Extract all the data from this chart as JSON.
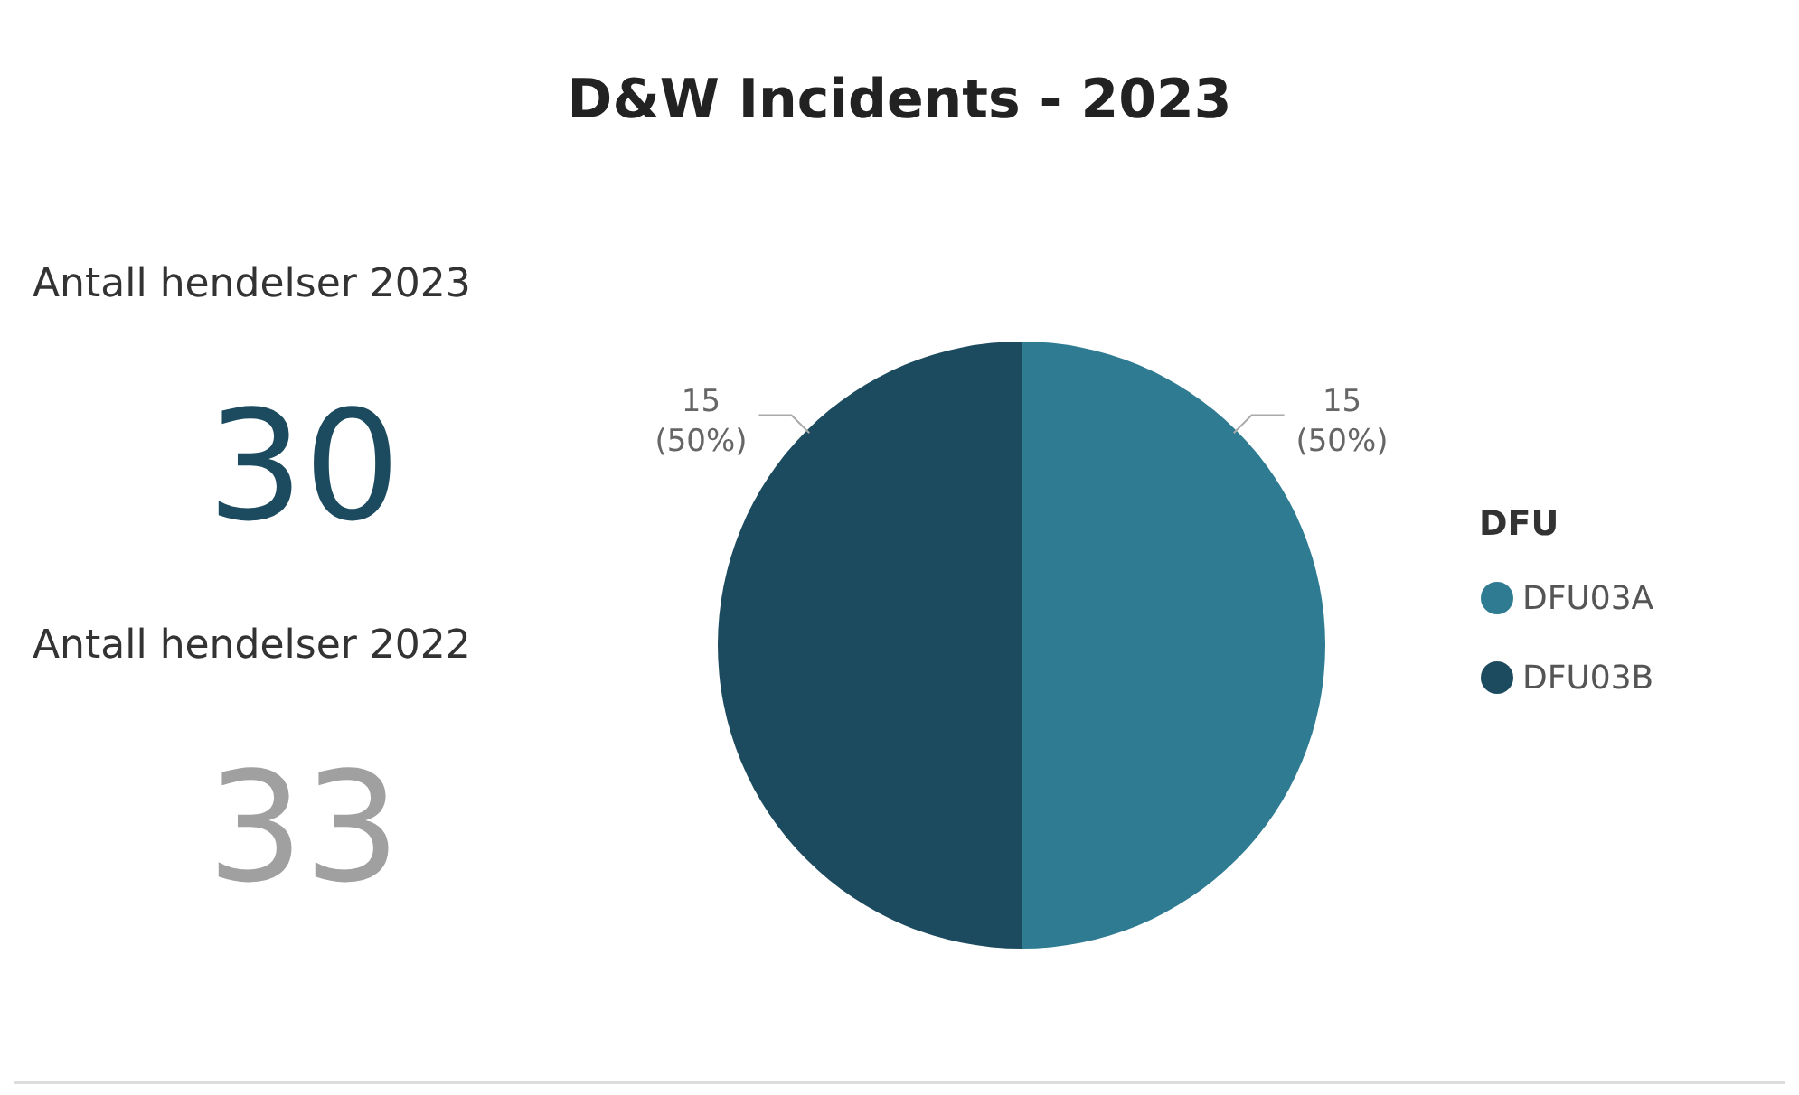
{
  "chart_data": [
    {
      "type": "other",
      "annotations": [
        "Antall hendelser 2023",
        "30",
        "Antall hendelser 2022",
        "33"
      ]
    },
    {
      "type": "pie",
      "title": "D&W Incidents - 2023",
      "legend_title": "DFU",
      "legend": "right",
      "categories": [
        "DFU03A",
        "DFU03B"
      ],
      "values": [
        15,
        15
      ],
      "colors": [
        "#2e7b92",
        "#1c4b5f"
      ],
      "value_labels": [
        "15 (50%)",
        "15 (50%)"
      ]
    }
  ]
}
